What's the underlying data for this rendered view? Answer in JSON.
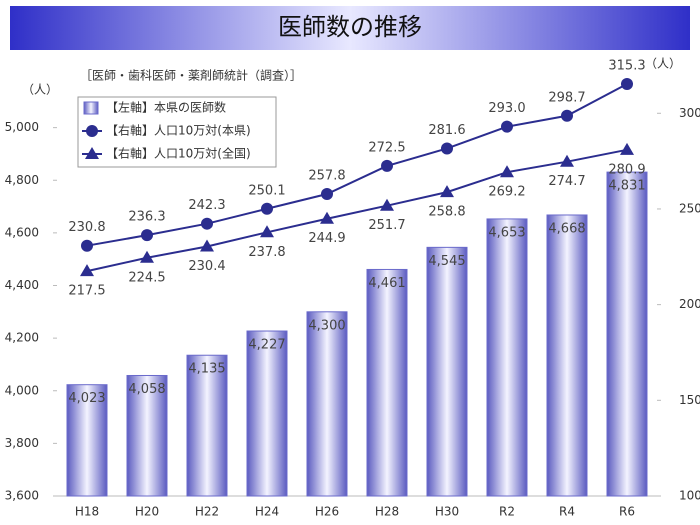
{
  "chart_data": {
    "type": "bar",
    "title": "医師数の推移",
    "subtitle": "［医師・歯科医師・薬剤師統計（調査）］",
    "y_label": "（人）",
    "y2_label": "（人）",
    "categories": [
      "H18",
      "H20",
      "H22",
      "H24",
      "H26",
      "H28",
      "H30",
      "R2",
      "R4",
      "R6"
    ],
    "series": [
      {
        "name": "【左軸】本県の医師数",
        "type": "bar",
        "color": "#6a6acb",
        "values": [
          4023,
          4058,
          4135,
          4227,
          4300,
          4461,
          4545,
          4653,
          4668,
          4831
        ],
        "value_labels": [
          "4,023",
          "4,058",
          "4,135",
          "4,227",
          "4,300",
          "4,461",
          "4,545",
          "4,653",
          "4,668",
          "4,831"
        ]
      },
      {
        "name": "【右軸】人口10万対(本県)",
        "type": "line",
        "axis": "y2",
        "marker": "circle",
        "color": "#2b2d8f",
        "values": [
          230.8,
          236.3,
          242.3,
          250.1,
          257.8,
          272.5,
          281.6,
          293.0,
          298.7,
          315.3
        ],
        "value_labels": [
          "230.8",
          "236.3",
          "242.3",
          "250.1",
          "257.8",
          "272.5",
          "281.6",
          "293.0",
          "298.7",
          "315.3"
        ]
      },
      {
        "name": "【右軸】人口10万対(全国)",
        "type": "line",
        "axis": "y2",
        "marker": "triangle",
        "color": "#2b2d8f",
        "values": [
          217.5,
          224.5,
          230.4,
          237.8,
          244.9,
          251.7,
          258.8,
          269.2,
          274.7,
          280.9
        ],
        "value_labels": [
          "217.5",
          "224.5",
          "230.4",
          "237.8",
          "244.9",
          "251.7",
          "258.8",
          "269.2",
          "274.7",
          "280.9"
        ]
      }
    ],
    "ylim": [
      3600,
      5200
    ],
    "yticks": [
      {
        "value": 3600,
        "label": "3,600"
      },
      {
        "value": 3800,
        "label": "3,800"
      },
      {
        "value": 4000,
        "label": "4,000"
      },
      {
        "value": 4200,
        "label": "4,200"
      },
      {
        "value": 4400,
        "label": "4,400"
      },
      {
        "value": 4600,
        "label": "4,600"
      },
      {
        "value": 4800,
        "label": "4,800"
      },
      {
        "value": 5000,
        "label": "5,000"
      }
    ],
    "y2lim": [
      100,
      320
    ],
    "y2ticks": [
      100,
      150,
      200,
      250,
      300
    ],
    "legend": "top-left"
  }
}
